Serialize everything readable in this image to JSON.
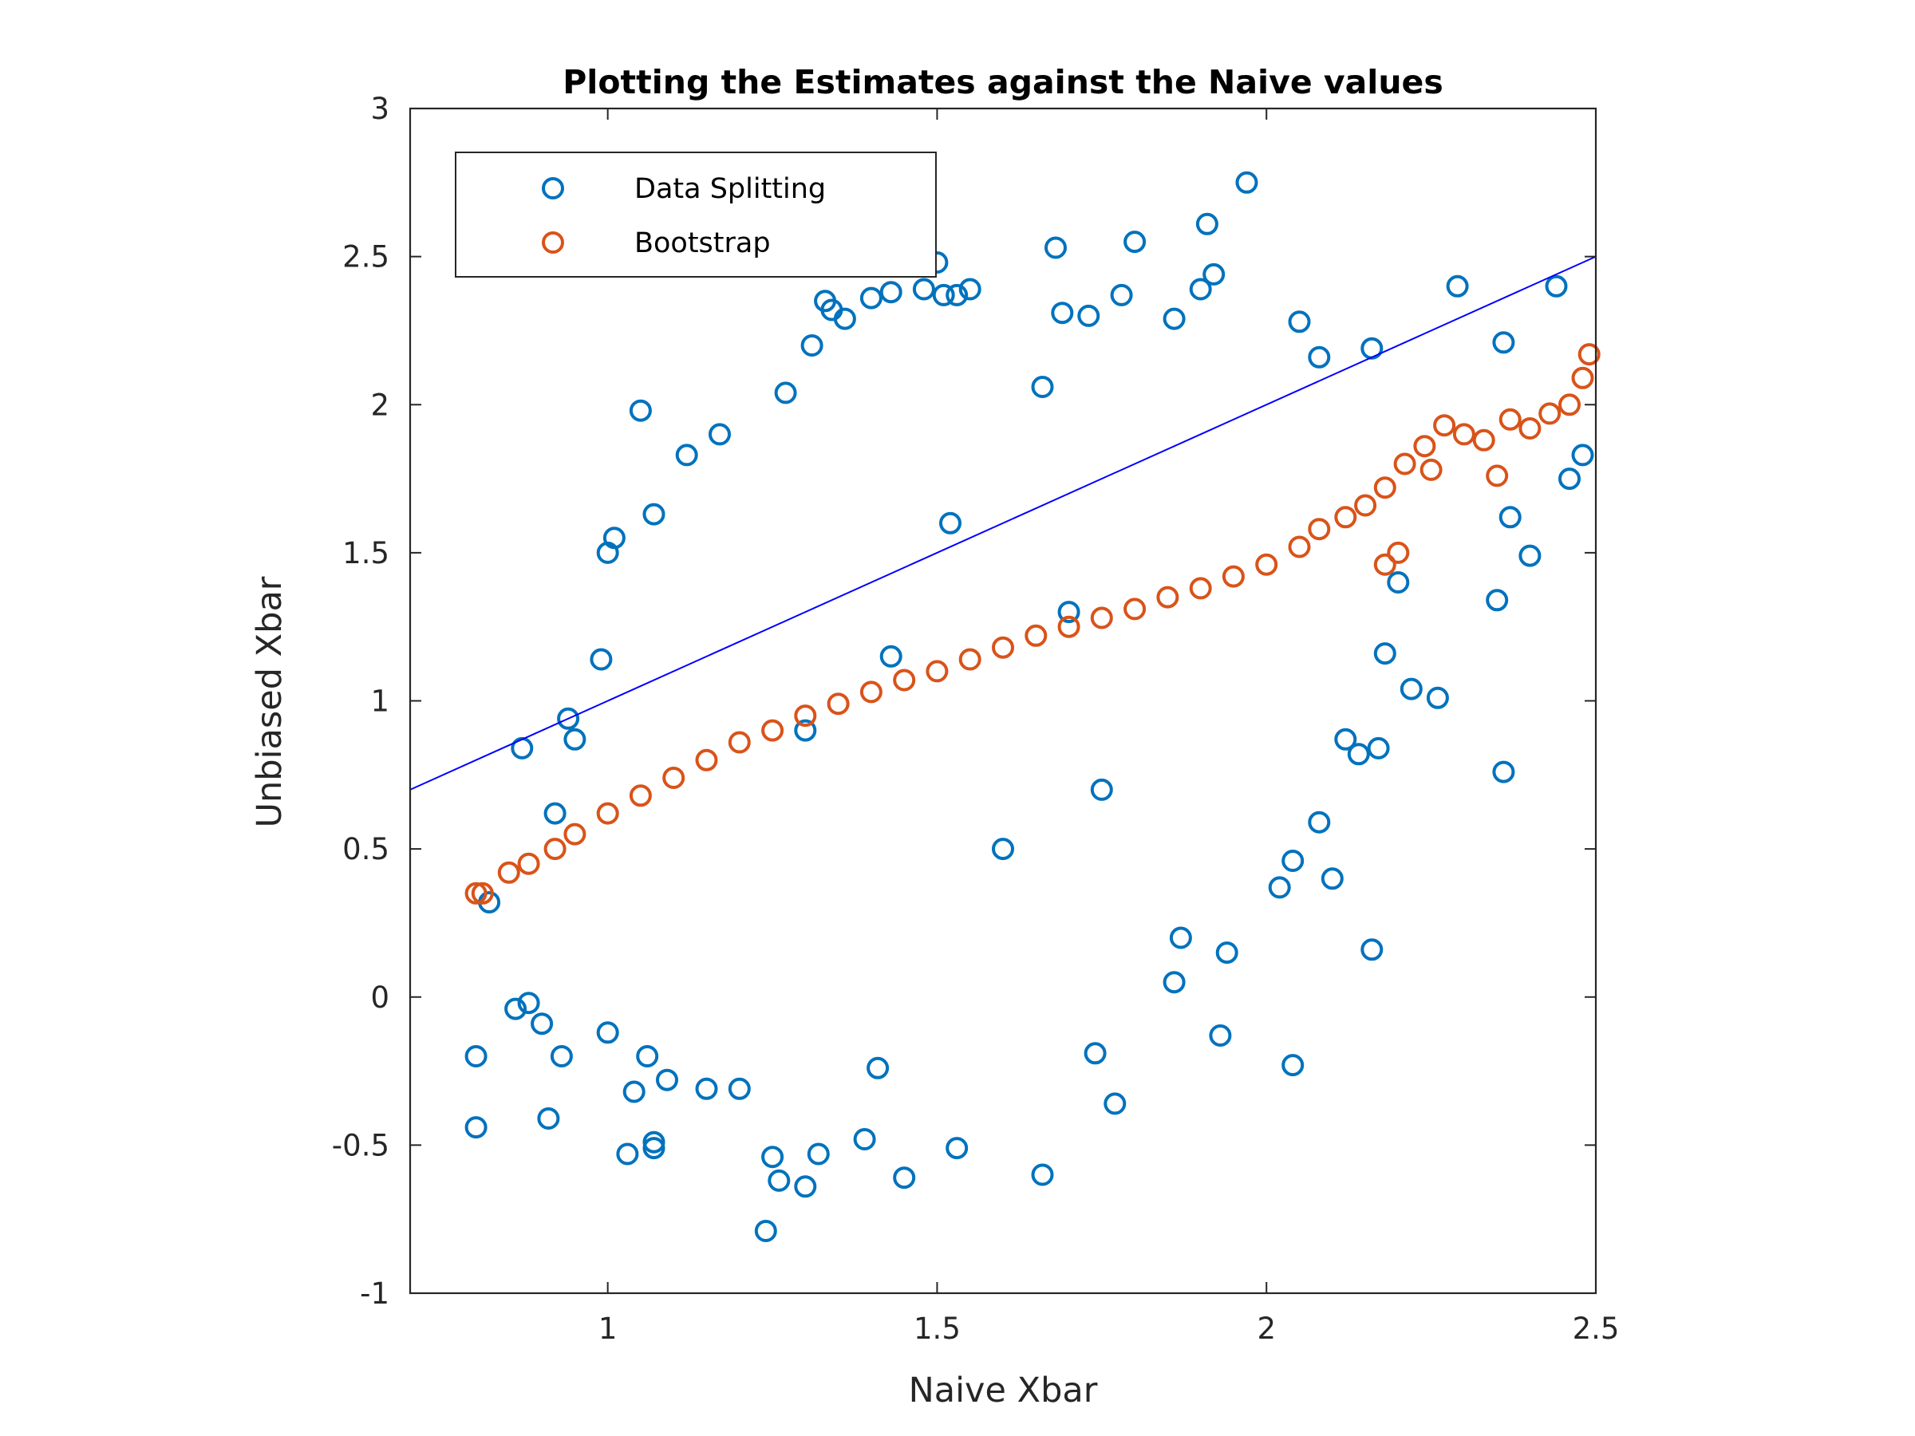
{
  "chart_data": {
    "type": "scatter",
    "title": "Plotting the Estimates against the Naive values",
    "xlabel": "Naive Xbar",
    "ylabel": "Unbiased Xbar",
    "xlim": [
      0.7,
      2.5
    ],
    "ylim": [
      -1,
      3
    ],
    "xticks": [
      "1",
      "1.5",
      "2",
      "2.5"
    ],
    "yticks": [
      "-1",
      "-0.5",
      "0",
      "0.5",
      "1",
      "1.5",
      "2",
      "2.5",
      "3"
    ],
    "grid": false,
    "legend_position": "top-left",
    "reference_line": {
      "color": "#0000ff",
      "points": [
        [
          0.7,
          0.7
        ],
        [
          2.5,
          2.5
        ]
      ]
    },
    "series": [
      {
        "name": "Data Splitting",
        "marker": "circle-open",
        "color": "#0072bd",
        "points": [
          [
            0.8,
            -0.2
          ],
          [
            0.8,
            -0.44
          ],
          [
            0.91,
            -0.41
          ],
          [
            0.93,
            -0.2
          ],
          [
            0.86,
            -0.04
          ],
          [
            0.88,
            -0.02
          ],
          [
            0.9,
            -0.09
          ],
          [
            0.82,
            0.32
          ],
          [
            0.92,
            0.62
          ],
          [
            0.87,
            0.84
          ],
          [
            0.94,
            0.94
          ],
          [
            0.95,
            0.87
          ],
          [
            0.99,
            1.14
          ],
          [
            1.0,
            1.5
          ],
          [
            1.01,
            1.55
          ],
          [
            1.05,
            1.98
          ],
          [
            1.07,
            1.63
          ],
          [
            1.12,
            1.83
          ],
          [
            1.03,
            -0.53
          ],
          [
            1.07,
            -0.51
          ],
          [
            1.07,
            -0.49
          ],
          [
            1.24,
            -0.79
          ],
          [
            1.26,
            -0.62
          ],
          [
            1.3,
            -0.64
          ],
          [
            1.25,
            -0.54
          ],
          [
            1.17,
            1.9
          ],
          [
            1.27,
            2.04
          ],
          [
            1.31,
            2.2
          ],
          [
            1.33,
            2.35
          ],
          [
            1.34,
            2.32
          ],
          [
            1.36,
            2.29
          ],
          [
            1.4,
            2.36
          ],
          [
            1.43,
            2.38
          ],
          [
            1.48,
            2.39
          ],
          [
            1.51,
            2.37
          ],
          [
            1.55,
            2.39
          ],
          [
            1.5,
            2.48
          ],
          [
            1.53,
            2.37
          ],
          [
            1.66,
            2.06
          ],
          [
            1.68,
            2.53
          ],
          [
            1.69,
            2.31
          ],
          [
            1.73,
            2.3
          ],
          [
            1.8,
            2.55
          ],
          [
            1.78,
            2.37
          ],
          [
            1.86,
            2.29
          ],
          [
            1.91,
            2.61
          ],
          [
            1.92,
            2.44
          ],
          [
            1.97,
            2.75
          ],
          [
            1.9,
            2.39
          ],
          [
            2.05,
            2.28
          ],
          [
            2.08,
            2.16
          ],
          [
            2.16,
            2.19
          ],
          [
            2.29,
            2.4
          ],
          [
            2.36,
            2.21
          ],
          [
            2.44,
            2.4
          ],
          [
            2.46,
            1.75
          ],
          [
            2.48,
            1.83
          ],
          [
            2.37,
            1.62
          ],
          [
            2.4,
            1.49
          ],
          [
            2.35,
            1.34
          ],
          [
            2.36,
            0.76
          ],
          [
            2.18,
            1.16
          ],
          [
            2.2,
            1.4
          ],
          [
            2.22,
            1.04
          ],
          [
            2.26,
            1.01
          ],
          [
            2.17,
            0.84
          ],
          [
            2.14,
            0.82
          ],
          [
            2.12,
            0.87
          ],
          [
            2.08,
            0.59
          ],
          [
            2.1,
            0.4
          ],
          [
            2.04,
            0.46
          ],
          [
            2.02,
            0.37
          ],
          [
            2.16,
            0.16
          ],
          [
            2.04,
            -0.23
          ],
          [
            1.93,
            -0.13
          ],
          [
            1.94,
            0.15
          ],
          [
            1.86,
            0.05
          ],
          [
            1.87,
            0.2
          ],
          [
            1.77,
            -0.36
          ],
          [
            1.74,
            -0.19
          ],
          [
            1.66,
            -0.6
          ],
          [
            1.53,
            -0.51
          ],
          [
            1.45,
            -0.61
          ],
          [
            1.41,
            -0.24
          ],
          [
            1.39,
            -0.48
          ],
          [
            1.32,
            -0.53
          ],
          [
            1.2,
            -0.31
          ],
          [
            1.15,
            -0.31
          ],
          [
            1.09,
            -0.28
          ],
          [
            1.06,
            -0.2
          ],
          [
            1.04,
            -0.32
          ],
          [
            1.0,
            -0.12
          ],
          [
            1.43,
            1.15
          ],
          [
            1.52,
            1.6
          ],
          [
            1.6,
            0.5
          ],
          [
            1.3,
            0.9
          ],
          [
            1.7,
            1.3
          ],
          [
            1.75,
            0.7
          ]
        ]
      },
      {
        "name": "Bootstrap",
        "marker": "circle-open",
        "color": "#d95319",
        "points": [
          [
            0.8,
            0.35
          ],
          [
            0.81,
            0.35
          ],
          [
            0.85,
            0.42
          ],
          [
            0.88,
            0.45
          ],
          [
            0.92,
            0.5
          ],
          [
            0.95,
            0.55
          ],
          [
            1.0,
            0.62
          ],
          [
            1.05,
            0.68
          ],
          [
            1.1,
            0.74
          ],
          [
            1.15,
            0.8
          ],
          [
            1.2,
            0.86
          ],
          [
            1.25,
            0.9
          ],
          [
            1.3,
            0.95
          ],
          [
            1.35,
            0.99
          ],
          [
            1.4,
            1.03
          ],
          [
            1.45,
            1.07
          ],
          [
            1.5,
            1.1
          ],
          [
            1.55,
            1.14
          ],
          [
            1.6,
            1.18
          ],
          [
            1.65,
            1.22
          ],
          [
            1.7,
            1.25
          ],
          [
            1.75,
            1.28
          ],
          [
            1.8,
            1.31
          ],
          [
            1.85,
            1.35
          ],
          [
            1.9,
            1.38
          ],
          [
            1.95,
            1.42
          ],
          [
            2.0,
            1.46
          ],
          [
            2.05,
            1.52
          ],
          [
            2.08,
            1.58
          ],
          [
            2.12,
            1.62
          ],
          [
            2.15,
            1.66
          ],
          [
            2.18,
            1.72
          ],
          [
            2.21,
            1.8
          ],
          [
            2.24,
            1.86
          ],
          [
            2.27,
            1.93
          ],
          [
            2.3,
            1.9
          ],
          [
            2.33,
            1.88
          ],
          [
            2.37,
            1.95
          ],
          [
            2.4,
            1.92
          ],
          [
            2.43,
            1.97
          ],
          [
            2.46,
            2.0
          ],
          [
            2.48,
            2.09
          ],
          [
            2.49,
            2.17
          ],
          [
            2.2,
            1.5
          ],
          [
            2.25,
            1.78
          ],
          [
            2.35,
            1.76
          ],
          [
            2.18,
            1.46
          ]
        ]
      }
    ]
  }
}
